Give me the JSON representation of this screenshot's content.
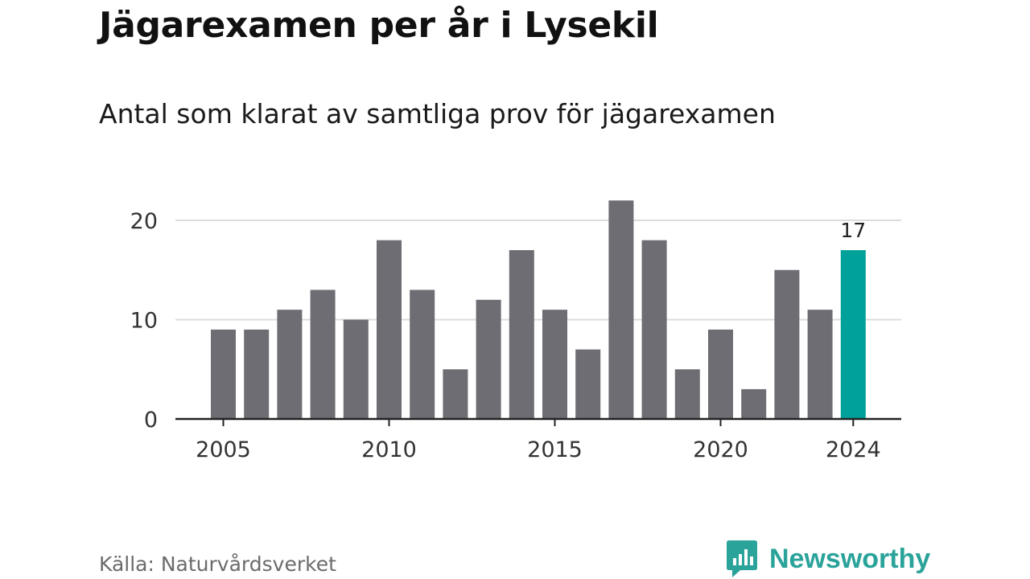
{
  "chart_data": {
    "type": "bar",
    "title": "Jägarexamen per år i Lysekil",
    "subtitle": "Antal som klarat av samtliga prov för jägarexamen",
    "source": "Källa: Naturvårdsverket",
    "categories": [
      "2005",
      "2006",
      "2007",
      "2008",
      "2009",
      "2010",
      "2011",
      "2012",
      "2013",
      "2014",
      "2015",
      "2016",
      "2017",
      "2018",
      "2019",
      "2020",
      "2021",
      "2022",
      "2023",
      "2024"
    ],
    "values": [
      9,
      9,
      11,
      13,
      10,
      18,
      13,
      5,
      12,
      17,
      11,
      7,
      22,
      18,
      5,
      9,
      3,
      15,
      11,
      17
    ],
    "x_tick_labels": [
      "2005",
      "2010",
      "2015",
      "2020",
      "2024"
    ],
    "y_ticks": [
      0,
      10,
      20
    ],
    "ylim": [
      0,
      22
    ],
    "grid": true,
    "highlight": {
      "category": "2024",
      "label": "17"
    },
    "colors": {
      "bar": "#6e6d73",
      "highlight": "#00a19a",
      "grid": "#dcdcdc",
      "axis": "#222222"
    }
  },
  "brand": {
    "name": "Newsworthy",
    "icon": "newsworthy-logo-icon",
    "color": "#2aa39a"
  }
}
